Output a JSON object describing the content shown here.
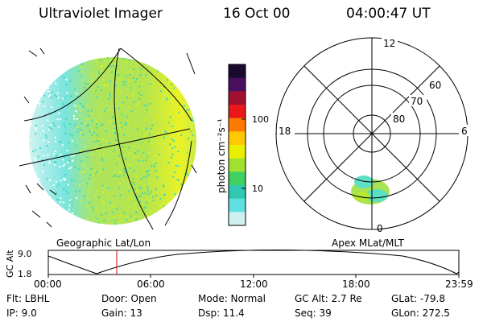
{
  "header": {
    "title": "Ultraviolet Imager",
    "date": "16 Oct 00",
    "time": "04:00:47 UT"
  },
  "colorbar": {
    "unit_label": "photon cm⁻²s⁻¹",
    "ticks": [
      "100",
      "10"
    ],
    "colors": [
      "#1a0a2e",
      "#4a1060",
      "#a01030",
      "#e81818",
      "#ff7a00",
      "#ffc800",
      "#e8f000",
      "#a0e030",
      "#40d060",
      "#30c8b0",
      "#60e0e0",
      "#d0f0f0"
    ]
  },
  "polar_plot": {
    "clock_labels": [
      "12",
      "18",
      "6",
      "0"
    ],
    "lat_labels": [
      "60",
      "70",
      "80"
    ]
  },
  "map_labels": {
    "geographic": "Geographic Lat/Lon",
    "apex": "Apex MLat/MLT"
  },
  "altitude_plot": {
    "ylabel": "GC Alt",
    "yticks": [
      "9.0",
      "1.8"
    ],
    "xticks": [
      "00:00",
      "06:00",
      "12:00",
      "18:00",
      "23:59"
    ],
    "marker_color": "#cc0000"
  },
  "info": {
    "filter": "Flt: LBHL",
    "door": "Door: Open",
    "mode": "Mode: Normal",
    "gc_alt": "GC Alt: 2.7 Re",
    "glat": "GLat: -79.8",
    "ip": "IP:  9.0",
    "gain": "Gain: 13",
    "dsp": "Dsp:   11.4",
    "seq": "Seq: 39",
    "glon": "GLon: 272.5"
  }
}
